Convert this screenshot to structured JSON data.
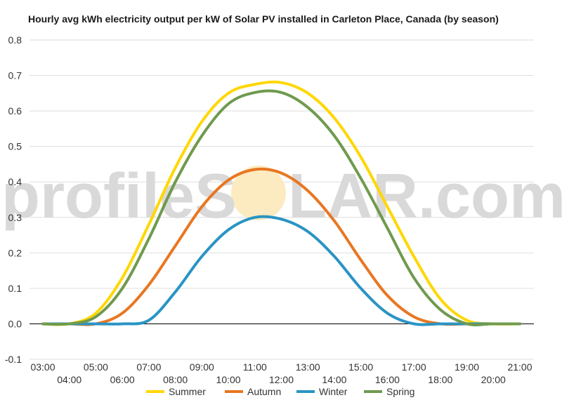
{
  "chart_data": {
    "type": "line",
    "title": "Hourly avg kWh electricity output per kW of Solar PV installed in Carleton Place, Canada (by season)",
    "xlabel": "",
    "ylabel": "",
    "ylim": [
      -0.1,
      0.8
    ],
    "yticks": [
      -0.1,
      0.0,
      0.1,
      0.2,
      0.3,
      0.4,
      0.5,
      0.6,
      0.7,
      0.8
    ],
    "ytick_labels": [
      "-0.1",
      "0.0",
      "0.1",
      "0.2",
      "0.3",
      "0.4",
      "0.5",
      "0.6",
      "0.7",
      "0.8"
    ],
    "x": [
      "03:00",
      "04:00",
      "05:00",
      "06:00",
      "07:00",
      "08:00",
      "09:00",
      "10:00",
      "11:00",
      "12:00",
      "13:00",
      "14:00",
      "15:00",
      "16:00",
      "17:00",
      "18:00",
      "19:00",
      "20:00",
      "21:00"
    ],
    "grid": true,
    "legend_position": "bottom",
    "series": [
      {
        "name": "Summer",
        "color": "#FFD700",
        "values": [
          0.0,
          0.0,
          0.03,
          0.13,
          0.28,
          0.44,
          0.57,
          0.65,
          0.675,
          0.68,
          0.65,
          0.58,
          0.47,
          0.33,
          0.19,
          0.07,
          0.01,
          0.0,
          0.0
        ]
      },
      {
        "name": "Autumn",
        "color": "#E87722",
        "values": [
          0.0,
          0.0,
          0.0,
          0.03,
          0.11,
          0.22,
          0.33,
          0.405,
          0.435,
          0.425,
          0.375,
          0.29,
          0.18,
          0.08,
          0.02,
          0.0,
          0.0,
          0.0,
          0.0
        ]
      },
      {
        "name": "Winter",
        "color": "#2A94C4",
        "values": [
          0.0,
          0.0,
          0.0,
          0.0,
          0.01,
          0.09,
          0.19,
          0.265,
          0.3,
          0.295,
          0.26,
          0.19,
          0.1,
          0.03,
          0.0,
          0.0,
          0.0,
          0.0,
          0.0
        ]
      },
      {
        "name": "Spring",
        "color": "#6F9A4E",
        "values": [
          0.0,
          0.0,
          0.02,
          0.1,
          0.24,
          0.4,
          0.53,
          0.62,
          0.652,
          0.652,
          0.61,
          0.53,
          0.41,
          0.27,
          0.13,
          0.04,
          0.0,
          0.0,
          0.0
        ]
      }
    ]
  },
  "watermark": {
    "text_left": "profileS",
    "text_right": "LAR.com",
    "sun_color": "#FCEBC0"
  }
}
